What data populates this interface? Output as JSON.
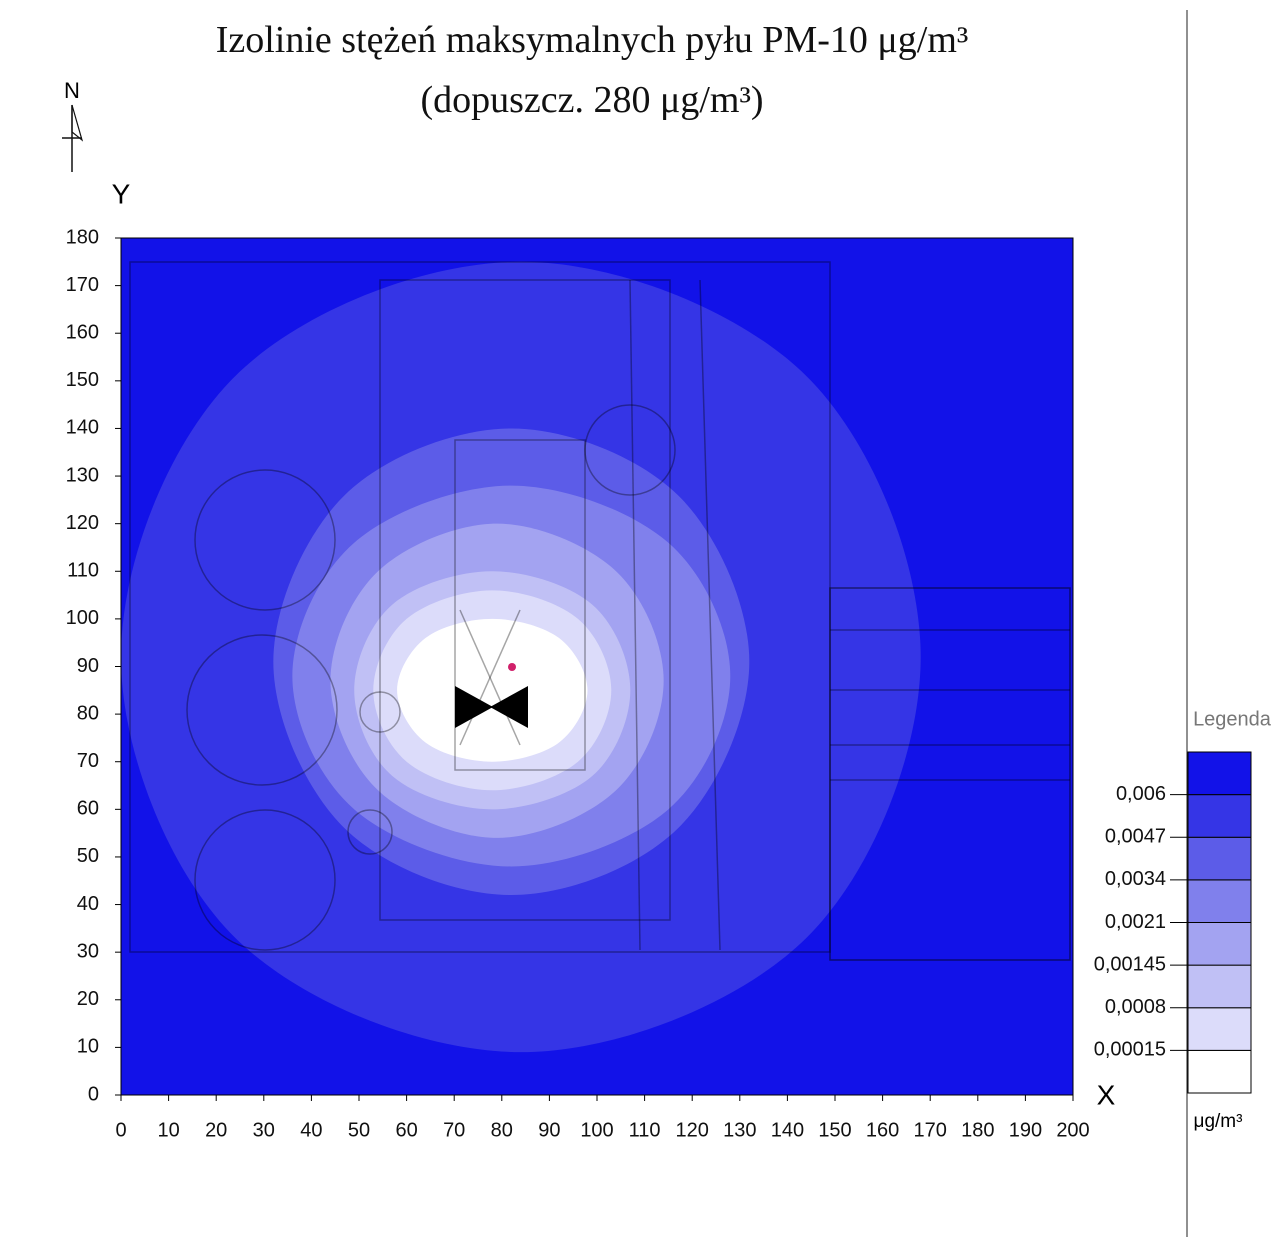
{
  "chart_data": {
    "type": "contour",
    "title": "Izolinie stężeń maksymalnych pyłu PM-10 μg/m³",
    "subtitle": "(dopuszcz. 280 μg/m³)",
    "north_label": "N",
    "x_label": "X",
    "y_label": "Y",
    "xlim": [
      0,
      200
    ],
    "ylim": [
      0,
      180
    ],
    "xticks": [
      0,
      10,
      20,
      30,
      40,
      50,
      60,
      70,
      80,
      90,
      100,
      110,
      120,
      130,
      140,
      150,
      160,
      170,
      180,
      190,
      200
    ],
    "yticks": [
      0,
      10,
      20,
      30,
      40,
      50,
      60,
      70,
      80,
      90,
      100,
      110,
      120,
      130,
      140,
      150,
      160,
      170,
      180
    ],
    "legend_title": "Legenda",
    "legend_unit": "μg/m³",
    "levels": [
      {
        "value": 0.00015,
        "label": "0,00015"
      },
      {
        "value": 0.0008,
        "label": "0,0008"
      },
      {
        "value": 0.00145,
        "label": "0,00145"
      },
      {
        "value": 0.0021,
        "label": "0,0021"
      },
      {
        "value": 0.0034,
        "label": "0,0034"
      },
      {
        "value": 0.0047,
        "label": "0,0047"
      },
      {
        "value": 0.006,
        "label": "0,006"
      }
    ],
    "colors": [
      "#ffffff",
      "#dcdcfa",
      "#c0c0f5",
      "#a3a3f1",
      "#8080ec",
      "#5c5ce8",
      "#3535e6",
      "#1212e8"
    ],
    "contours": [
      {
        "x": [
          98,
          92,
          78,
          64,
          58,
          64,
          78,
          92
        ],
        "y": [
          85,
          96,
          100,
          96,
          85,
          74,
          70,
          74
        ]
      },
      {
        "x": [
          103,
          96,
          78,
          60,
          53,
          60,
          78,
          96
        ],
        "y": [
          85,
          100,
          106,
          100,
          85,
          70,
          64,
          70
        ]
      },
      {
        "x": [
          107,
          99,
          78,
          57,
          49,
          57,
          78,
          99
        ],
        "y": [
          85,
          103,
          110,
          103,
          85,
          67,
          60,
          67
        ]
      },
      {
        "x": [
          114,
          104,
          79,
          54,
          44,
          54,
          79,
          104
        ],
        "y": [
          87,
          110,
          120,
          110,
          87,
          64,
          54,
          64
        ]
      },
      {
        "x": [
          128,
          115,
          82,
          49,
          36,
          49,
          82,
          115
        ],
        "y": [
          88,
          116,
          128,
          116,
          88,
          60,
          48,
          60
        ]
      },
      {
        "x": [
          132,
          117,
          82,
          47,
          32,
          47,
          82,
          117
        ],
        "y": [
          91,
          126,
          140,
          126,
          91,
          56,
          42,
          56
        ]
      },
      {
        "x": [
          168,
          144,
          84,
          24,
          0,
          24,
          84,
          144
        ],
        "y": [
          92,
          151,
          175,
          151,
          92,
          33,
          9,
          33
        ]
      }
    ]
  }
}
